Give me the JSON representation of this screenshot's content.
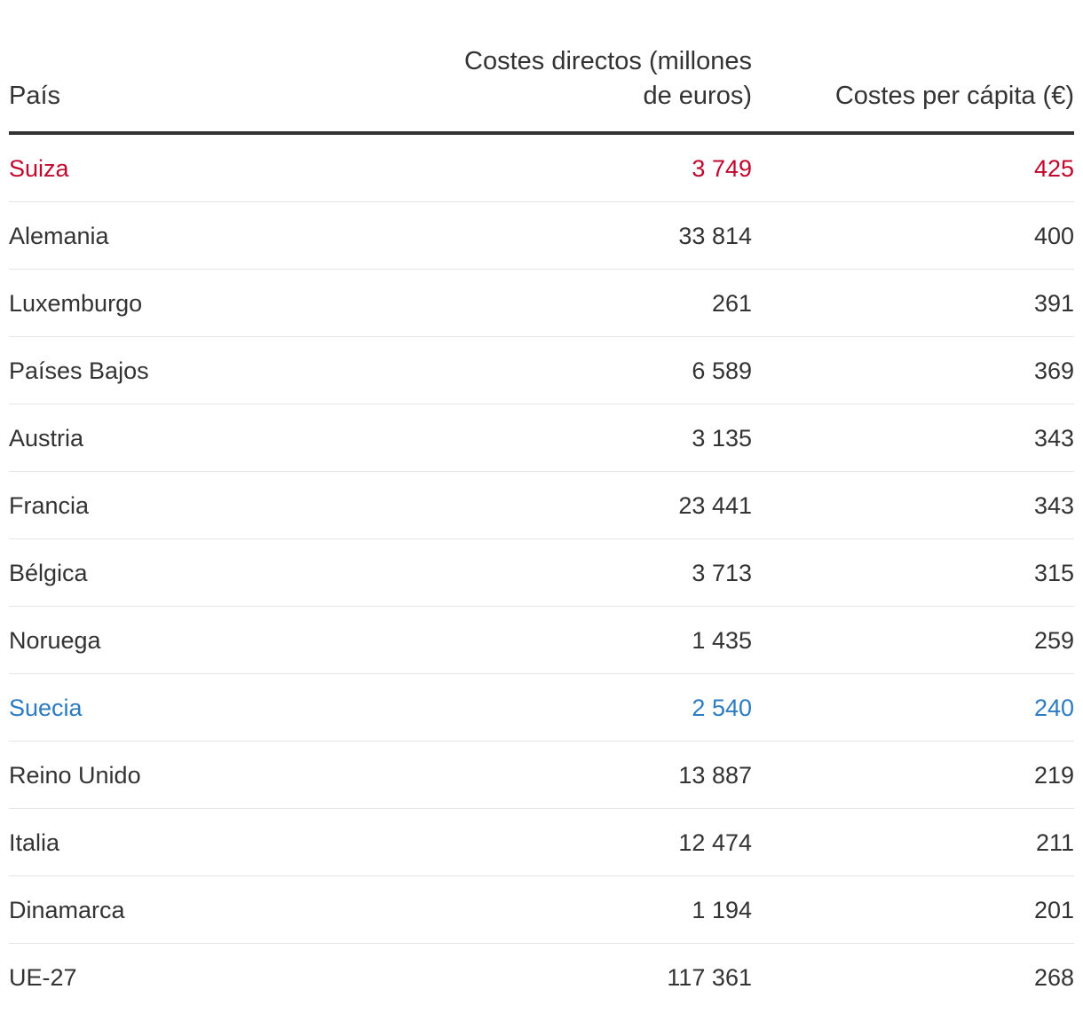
{
  "colors": {
    "text": "#333333",
    "highlight_red": "#c0082f",
    "highlight_blue": "#2d7bc0",
    "rule": "#e6e6e6"
  },
  "chart_data": {
    "type": "table",
    "columns": [
      "País",
      "Costes directos (millones de euros)",
      "Costes per cápita (€)"
    ],
    "rows": [
      {
        "country": "Suiza",
        "direct_costs": "3 749",
        "per_capita": "425",
        "highlight": "red"
      },
      {
        "country": "Alemania",
        "direct_costs": "33 814",
        "per_capita": "400",
        "highlight": ""
      },
      {
        "country": "Luxemburgo",
        "direct_costs": "261",
        "per_capita": "391",
        "highlight": ""
      },
      {
        "country": "Países Bajos",
        "direct_costs": "6 589",
        "per_capita": "369",
        "highlight": ""
      },
      {
        "country": "Austria",
        "direct_costs": "3 135",
        "per_capita": "343",
        "highlight": ""
      },
      {
        "country": "Francia",
        "direct_costs": "23 441",
        "per_capita": "343",
        "highlight": ""
      },
      {
        "country": "Bélgica",
        "direct_costs": "3 713",
        "per_capita": "315",
        "highlight": ""
      },
      {
        "country": "Noruega",
        "direct_costs": "1 435",
        "per_capita": "259",
        "highlight": ""
      },
      {
        "country": "Suecia",
        "direct_costs": "2 540",
        "per_capita": "240",
        "highlight": "blue"
      },
      {
        "country": "Reino Unido",
        "direct_costs": "13 887",
        "per_capita": "219",
        "highlight": ""
      },
      {
        "country": "Italia",
        "direct_costs": "12 474",
        "per_capita": "211",
        "highlight": ""
      },
      {
        "country": "Dinamarca",
        "direct_costs": "1 194",
        "per_capita": "201",
        "highlight": ""
      },
      {
        "country": "UE-27",
        "direct_costs": "117 361",
        "per_capita": "268",
        "highlight": ""
      }
    ]
  }
}
